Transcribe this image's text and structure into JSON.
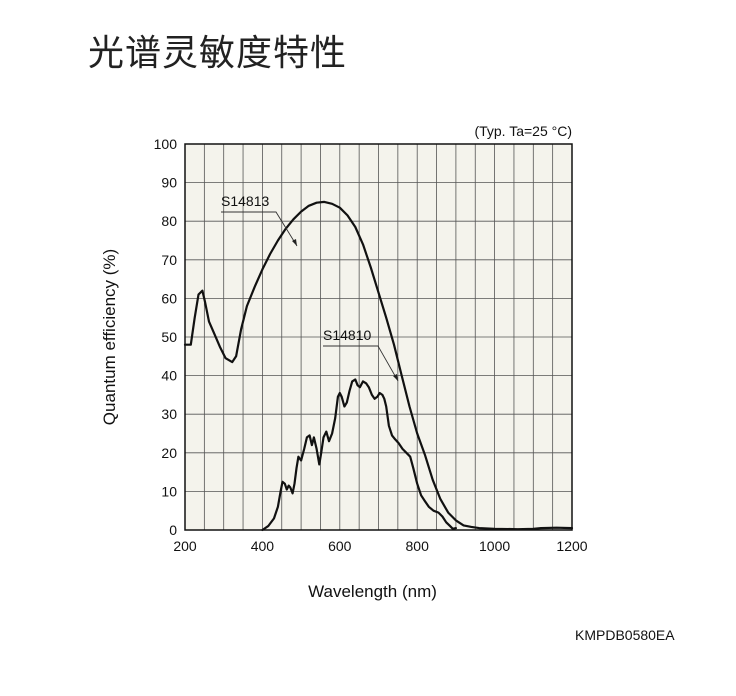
{
  "title": "光谱灵敏度特性",
  "document_code": "KMPDB0580EA",
  "chart_data": {
    "type": "line",
    "annotation": "(Typ. Ta=25 °C)",
    "xlabel": "Wavelength (nm)",
    "ylabel": "Quantum efficiency (%)",
    "xlim": [
      200,
      1200
    ],
    "ylim": [
      0,
      100
    ],
    "x_ticks": [
      200,
      400,
      600,
      800,
      1000,
      1200
    ],
    "y_ticks": [
      0,
      10,
      20,
      30,
      40,
      50,
      60,
      70,
      80,
      90,
      100
    ],
    "grid": true,
    "background": "#f4f3ec",
    "line_color": "#111111",
    "series": [
      {
        "name": "S14813",
        "points": [
          [
            200,
            48
          ],
          [
            215,
            48
          ],
          [
            225,
            55
          ],
          [
            235,
            61
          ],
          [
            245,
            62
          ],
          [
            252,
            59
          ],
          [
            262,
            54
          ],
          [
            275,
            51
          ],
          [
            290,
            47.5
          ],
          [
            305,
            44.5
          ],
          [
            322,
            43.5
          ],
          [
            332,
            45
          ],
          [
            345,
            52
          ],
          [
            360,
            58
          ],
          [
            380,
            63
          ],
          [
            400,
            67.5
          ],
          [
            420,
            71.5
          ],
          [
            440,
            75
          ],
          [
            460,
            78
          ],
          [
            480,
            80.5
          ],
          [
            500,
            82.5
          ],
          [
            520,
            84
          ],
          [
            540,
            84.8
          ],
          [
            560,
            85
          ],
          [
            580,
            84.5
          ],
          [
            600,
            83.5
          ],
          [
            620,
            81.5
          ],
          [
            640,
            78.5
          ],
          [
            660,
            74
          ],
          [
            680,
            68
          ],
          [
            700,
            61.5
          ],
          [
            720,
            55
          ],
          [
            740,
            48
          ],
          [
            760,
            40
          ],
          [
            780,
            32
          ],
          [
            800,
            25
          ],
          [
            820,
            19.5
          ],
          [
            840,
            13
          ],
          [
            860,
            8
          ],
          [
            880,
            4.5
          ],
          [
            900,
            2.5
          ],
          [
            920,
            1.2
          ],
          [
            940,
            0.8
          ],
          [
            960,
            0.5
          ],
          [
            1000,
            0.3
          ],
          [
            1060,
            0.2
          ],
          [
            1100,
            0.3
          ],
          [
            1120,
            0.5
          ],
          [
            1160,
            0.6
          ],
          [
            1200,
            0.5
          ]
        ]
      },
      {
        "name": "S14810",
        "points": [
          [
            400,
            0
          ],
          [
            415,
            1
          ],
          [
            430,
            3
          ],
          [
            440,
            6
          ],
          [
            447,
            10
          ],
          [
            452,
            12.5
          ],
          [
            458,
            12
          ],
          [
            463,
            10.5
          ],
          [
            468,
            11.5
          ],
          [
            472,
            11
          ],
          [
            478,
            9.5
          ],
          [
            483,
            12
          ],
          [
            488,
            16
          ],
          [
            493,
            19
          ],
          [
            500,
            18
          ],
          [
            508,
            21
          ],
          [
            515,
            24
          ],
          [
            522,
            24.5
          ],
          [
            528,
            22
          ],
          [
            533,
            24
          ],
          [
            540,
            21
          ],
          [
            547,
            17
          ],
          [
            552,
            20
          ],
          [
            558,
            24
          ],
          [
            565,
            25.5
          ],
          [
            572,
            23
          ],
          [
            580,
            25
          ],
          [
            588,
            29
          ],
          [
            595,
            34.5
          ],
          [
            600,
            35.5
          ],
          [
            605,
            34.5
          ],
          [
            612,
            32
          ],
          [
            618,
            33
          ],
          [
            625,
            36
          ],
          [
            632,
            38.5
          ],
          [
            640,
            39
          ],
          [
            646,
            37.5
          ],
          [
            652,
            37
          ],
          [
            660,
            38.5
          ],
          [
            668,
            38
          ],
          [
            675,
            37
          ],
          [
            683,
            35
          ],
          [
            690,
            34
          ],
          [
            697,
            34.5
          ],
          [
            703,
            35.5
          ],
          [
            710,
            35
          ],
          [
            715,
            34
          ],
          [
            720,
            32
          ],
          [
            727,
            27
          ],
          [
            735,
            24.5
          ],
          [
            743,
            23.5
          ],
          [
            752,
            22.5
          ],
          [
            762,
            21
          ],
          [
            772,
            20
          ],
          [
            782,
            19
          ],
          [
            790,
            16
          ],
          [
            800,
            12
          ],
          [
            810,
            9
          ],
          [
            820,
            7.5
          ],
          [
            830,
            6
          ],
          [
            842,
            5
          ],
          [
            855,
            4.5
          ],
          [
            865,
            3.5
          ],
          [
            875,
            2
          ],
          [
            885,
            1
          ],
          [
            892,
            0.3
          ],
          [
            900,
            0.5
          ]
        ]
      }
    ]
  }
}
